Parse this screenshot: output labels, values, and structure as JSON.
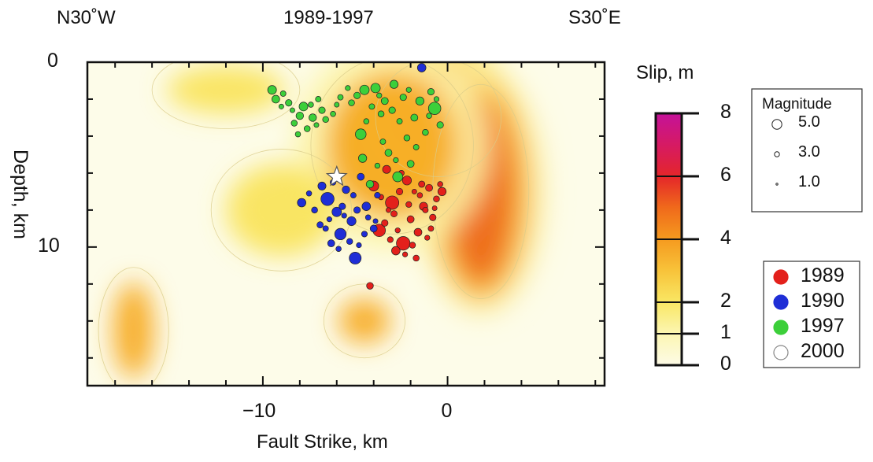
{
  "chart_data": {
    "type": "scatter",
    "title": "1989-1997",
    "left_label": "N30˚W",
    "right_label": "S30˚E",
    "xlabel": "Fault Strike, km",
    "ylabel": "Depth, km",
    "xlim": [
      -19.5,
      8.5
    ],
    "ylim": [
      0,
      17.5
    ],
    "y_inverted": true,
    "x_ticks": [
      -10,
      0
    ],
    "y_ticks": [
      0,
      10
    ],
    "colorbar": {
      "label": "Slip, m",
      "ticks": [
        0,
        1,
        2,
        4,
        6,
        8
      ],
      "colors": [
        "#fdfbe6",
        "#fcf4a8",
        "#f9e45c",
        "#f7ab22",
        "#ef6a1a",
        "#e0202a",
        "#d11670",
        "#c4129a"
      ]
    },
    "slip_field": {
      "background": "#fdfce9",
      "patches": [
        {
          "x": -0.5,
          "y": 3.0,
          "slip": 6.2
        },
        {
          "x": 1.8,
          "y": 7.0,
          "slip": 5.0
        },
        {
          "x": -3.0,
          "y": 4.5,
          "slip": 3.0
        },
        {
          "x": -12.0,
          "y": 1.5,
          "slip": 1.5
        },
        {
          "x": -17.0,
          "y": 14.5,
          "slip": 2.2
        },
        {
          "x": -4.5,
          "y": 14.0,
          "slip": 2.0
        },
        {
          "x": -9.0,
          "y": 8.0,
          "slip": 1.2
        }
      ]
    },
    "magnitude_legend": {
      "title": "Magnitude",
      "entries": [
        "5.0",
        "3.0",
        "1.0"
      ]
    },
    "year_legend": [
      {
        "label": "1989",
        "color": "#e3201b"
      },
      {
        "label": "1990",
        "color": "#1f2ed6"
      },
      {
        "label": "1997",
        "color": "#3ccf3a"
      },
      {
        "label": "2000",
        "color": "#ffffff"
      }
    ],
    "mainshock": {
      "x": -6.0,
      "y": 6.2
    },
    "series": [
      {
        "name": "1989",
        "color": "#e3201b",
        "points": [
          {
            "x": -3.0,
            "y": 7.6,
            "mag": 4.6
          },
          {
            "x": -2.4,
            "y": 9.8,
            "mag": 4.7
          },
          {
            "x": -3.7,
            "y": 9.1,
            "mag": 4.2
          },
          {
            "x": -4.0,
            "y": 6.7,
            "mag": 3.2
          },
          {
            "x": -2.2,
            "y": 6.4,
            "mag": 2.8
          },
          {
            "x": -1.3,
            "y": 7.8,
            "mag": 2.5
          },
          {
            "x": -0.3,
            "y": 7.0,
            "mag": 2.5
          },
          {
            "x": -2.8,
            "y": 10.2,
            "mag": 2.6
          },
          {
            "x": -1.6,
            "y": 9.2,
            "mag": 2.3
          },
          {
            "x": -3.3,
            "y": 5.8,
            "mag": 2.4
          },
          {
            "x": -2.0,
            "y": 8.5,
            "mag": 2.0
          },
          {
            "x": -1.0,
            "y": 6.8,
            "mag": 2.0
          },
          {
            "x": -0.8,
            "y": 8.4,
            "mag": 1.8
          },
          {
            "x": -3.4,
            "y": 8.7,
            "mag": 1.8
          },
          {
            "x": -4.2,
            "y": 12.1,
            "mag": 1.9
          },
          {
            "x": -1.7,
            "y": 10.6,
            "mag": 1.6
          },
          {
            "x": -2.6,
            "y": 7.0,
            "mag": 1.8
          },
          {
            "x": -1.4,
            "y": 6.6,
            "mag": 1.7
          },
          {
            "x": -0.6,
            "y": 7.4,
            "mag": 1.6
          },
          {
            "x": -2.9,
            "y": 8.2,
            "mag": 1.7
          },
          {
            "x": -2.1,
            "y": 7.7,
            "mag": 1.5
          },
          {
            "x": -1.9,
            "y": 9.9,
            "mag": 1.6
          },
          {
            "x": -3.1,
            "y": 9.6,
            "mag": 1.5
          },
          {
            "x": -0.9,
            "y": 9.0,
            "mag": 1.4
          },
          {
            "x": -1.2,
            "y": 8.0,
            "mag": 1.4
          },
          {
            "x": -2.5,
            "y": 6.0,
            "mag": 1.4
          },
          {
            "x": -3.6,
            "y": 7.3,
            "mag": 1.3
          },
          {
            "x": -1.5,
            "y": 7.2,
            "mag": 1.3
          },
          {
            "x": -0.4,
            "y": 6.6,
            "mag": 1.3
          },
          {
            "x": -2.3,
            "y": 10.4,
            "mag": 1.2
          },
          {
            "x": -2.7,
            "y": 9.1,
            "mag": 1.2
          },
          {
            "x": -1.1,
            "y": 9.5,
            "mag": 1.2
          },
          {
            "x": -0.7,
            "y": 7.9,
            "mag": 1.1
          },
          {
            "x": -3.2,
            "y": 8.0,
            "mag": 1.1
          },
          {
            "x": -1.8,
            "y": 7.0,
            "mag": 1.1
          }
        ]
      },
      {
        "name": "1990",
        "color": "#1f2ed6",
        "points": [
          {
            "x": -6.5,
            "y": 7.4,
            "mag": 4.5
          },
          {
            "x": -5.0,
            "y": 10.6,
            "mag": 4.0
          },
          {
            "x": -5.8,
            "y": 9.3,
            "mag": 3.8
          },
          {
            "x": -6.0,
            "y": 8.1,
            "mag": 3.0
          },
          {
            "x": -5.2,
            "y": 8.6,
            "mag": 2.8
          },
          {
            "x": -7.9,
            "y": 7.6,
            "mag": 2.6
          },
          {
            "x": -4.4,
            "y": 7.8,
            "mag": 2.6
          },
          {
            "x": -6.8,
            "y": 6.7,
            "mag": 2.4
          },
          {
            "x": -1.4,
            "y": 0.3,
            "mag": 2.6
          },
          {
            "x": -5.5,
            "y": 6.9,
            "mag": 2.2
          },
          {
            "x": -4.7,
            "y": 6.2,
            "mag": 2.0
          },
          {
            "x": -6.3,
            "y": 9.8,
            "mag": 2.0
          },
          {
            "x": -4.0,
            "y": 9.0,
            "mag": 2.0
          },
          {
            "x": -5.7,
            "y": 7.8,
            "mag": 1.8
          },
          {
            "x": -4.9,
            "y": 8.0,
            "mag": 1.8
          },
          {
            "x": -6.9,
            "y": 8.8,
            "mag": 1.7
          },
          {
            "x": -7.2,
            "y": 8.0,
            "mag": 1.6
          },
          {
            "x": -5.3,
            "y": 9.7,
            "mag": 1.6
          },
          {
            "x": -4.5,
            "y": 9.3,
            "mag": 1.5
          },
          {
            "x": -6.2,
            "y": 6.5,
            "mag": 1.5
          },
          {
            "x": -3.8,
            "y": 7.2,
            "mag": 1.5
          },
          {
            "x": -5.1,
            "y": 7.2,
            "mag": 1.4
          },
          {
            "x": -6.6,
            "y": 9.0,
            "mag": 1.4
          },
          {
            "x": -5.9,
            "y": 10.1,
            "mag": 1.3
          },
          {
            "x": -4.3,
            "y": 8.4,
            "mag": 1.3
          },
          {
            "x": -7.5,
            "y": 7.1,
            "mag": 1.3
          },
          {
            "x": -5.6,
            "y": 8.3,
            "mag": 1.2
          },
          {
            "x": -4.8,
            "y": 9.9,
            "mag": 1.2
          },
          {
            "x": -6.4,
            "y": 8.5,
            "mag": 1.2
          },
          {
            "x": -3.9,
            "y": 8.6,
            "mag": 1.1
          }
        ]
      },
      {
        "name": "1997",
        "color": "#3ccf3a",
        "points": [
          {
            "x": -0.7,
            "y": 2.5,
            "mag": 4.2
          },
          {
            "x": -4.7,
            "y": 3.9,
            "mag": 3.5
          },
          {
            "x": -2.7,
            "y": 6.2,
            "mag": 3.2
          },
          {
            "x": -4.5,
            "y": 1.5,
            "mag": 3.0
          },
          {
            "x": -3.9,
            "y": 1.4,
            "mag": 3.0
          },
          {
            "x": -9.5,
            "y": 1.5,
            "mag": 2.7
          },
          {
            "x": -7.8,
            "y": 2.4,
            "mag": 2.7
          },
          {
            "x": -2.9,
            "y": 1.2,
            "mag": 2.5
          },
          {
            "x": -1.5,
            "y": 2.1,
            "mag": 2.5
          },
          {
            "x": -4.6,
            "y": 5.2,
            "mag": 2.5
          },
          {
            "x": -9.3,
            "y": 2.0,
            "mag": 2.3
          },
          {
            "x": -7.3,
            "y": 3.0,
            "mag": 2.2
          },
          {
            "x": -8.0,
            "y": 2.9,
            "mag": 2.2
          },
          {
            "x": -4.2,
            "y": 6.6,
            "mag": 2.2
          },
          {
            "x": -3.2,
            "y": 4.9,
            "mag": 2.0
          },
          {
            "x": -1.8,
            "y": 3.0,
            "mag": 2.0
          },
          {
            "x": -3.4,
            "y": 2.1,
            "mag": 2.0
          },
          {
            "x": -2.0,
            "y": 5.5,
            "mag": 2.0
          },
          {
            "x": -8.6,
            "y": 2.2,
            "mag": 1.8
          },
          {
            "x": -6.8,
            "y": 2.6,
            "mag": 1.8
          },
          {
            "x": -4.9,
            "y": 1.8,
            "mag": 1.8
          },
          {
            "x": -3.0,
            "y": 2.6,
            "mag": 1.8
          },
          {
            "x": -2.4,
            "y": 1.9,
            "mag": 1.8
          },
          {
            "x": -0.9,
            "y": 1.6,
            "mag": 1.8
          },
          {
            "x": -0.4,
            "y": 3.4,
            "mag": 1.8
          },
          {
            "x": -7.6,
            "y": 3.6,
            "mag": 1.6
          },
          {
            "x": -8.3,
            "y": 3.3,
            "mag": 1.6
          },
          {
            "x": -6.6,
            "y": 3.1,
            "mag": 1.6
          },
          {
            "x": -5.2,
            "y": 2.2,
            "mag": 1.6
          },
          {
            "x": -3.6,
            "y": 2.8,
            "mag": 1.6
          },
          {
            "x": -2.2,
            "y": 4.1,
            "mag": 1.6
          },
          {
            "x": -1.2,
            "y": 3.8,
            "mag": 1.6
          },
          {
            "x": -8.9,
            "y": 1.7,
            "mag": 1.4
          },
          {
            "x": -7.0,
            "y": 2.0,
            "mag": 1.4
          },
          {
            "x": -5.8,
            "y": 1.9,
            "mag": 1.4
          },
          {
            "x": -4.1,
            "y": 2.4,
            "mag": 1.4
          },
          {
            "x": -2.6,
            "y": 3.2,
            "mag": 1.4
          },
          {
            "x": -1.7,
            "y": 4.6,
            "mag": 1.4
          },
          {
            "x": -3.5,
            "y": 4.3,
            "mag": 1.4
          },
          {
            "x": -8.1,
            "y": 3.9,
            "mag": 1.3
          },
          {
            "x": -7.4,
            "y": 2.3,
            "mag": 1.3
          },
          {
            "x": -6.2,
            "y": 2.8,
            "mag": 1.3
          },
          {
            "x": -4.4,
            "y": 3.2,
            "mag": 1.3
          },
          {
            "x": -1.0,
            "y": 2.9,
            "mag": 1.3
          },
          {
            "x": -5.4,
            "y": 1.4,
            "mag": 1.2
          },
          {
            "x": -3.7,
            "y": 1.8,
            "mag": 1.2
          },
          {
            "x": -2.1,
            "y": 1.5,
            "mag": 1.2
          },
          {
            "x": -0.6,
            "y": 2.0,
            "mag": 1.2
          },
          {
            "x": -3.8,
            "y": 5.6,
            "mag": 1.2
          },
          {
            "x": -2.8,
            "y": 5.3,
            "mag": 1.2
          },
          {
            "x": -8.4,
            "y": 2.6,
            "mag": 1.1
          },
          {
            "x": -7.1,
            "y": 3.4,
            "mag": 1.1
          },
          {
            "x": -9.0,
            "y": 2.4,
            "mag": 1.1
          },
          {
            "x": -6.0,
            "y": 2.3,
            "mag": 1.1
          }
        ]
      }
    ]
  }
}
